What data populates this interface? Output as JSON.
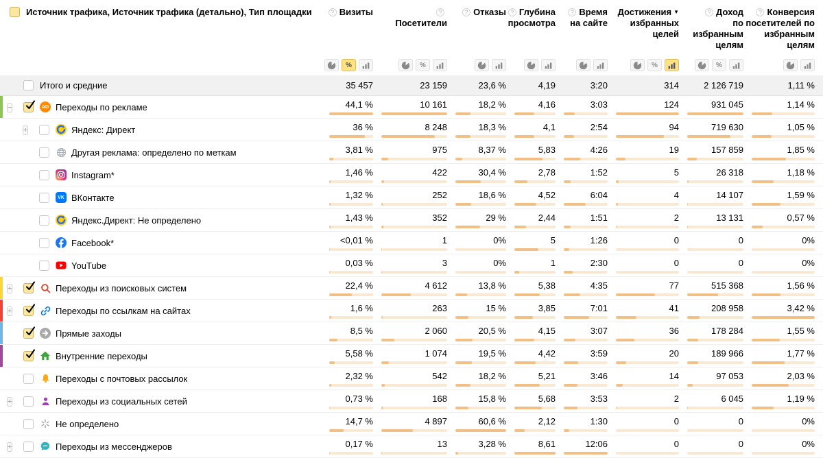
{
  "header": {
    "dimension_title": "Источник трафика, Источник трафика (детально), Тип площадки",
    "select_all_checked": true,
    "columns": [
      {
        "key": "visits",
        "label": "Визиты",
        "help": true,
        "sort": null,
        "toggles": [
          "pie",
          "percent",
          "bars"
        ],
        "active": "percent"
      },
      {
        "key": "visitors",
        "label": "Посетители",
        "help": true,
        "sort": null,
        "toggles": [
          "pie",
          "percent",
          "bars"
        ],
        "active": null
      },
      {
        "key": "bounce",
        "label": "Отказы",
        "help": true,
        "sort": null,
        "toggles": [
          "pie",
          "bars"
        ],
        "active": null
      },
      {
        "key": "depth",
        "label": "Глубина просмотра",
        "help": true,
        "sort": null,
        "toggles": [
          "pie",
          "bars"
        ],
        "active": null
      },
      {
        "key": "time",
        "label": "Время на сайте",
        "help": true,
        "sort": null,
        "toggles": [
          "pie",
          "bars"
        ],
        "active": null
      },
      {
        "key": "goals",
        "label": "Достижения избранных целей",
        "help": false,
        "sort": "desc",
        "toggles": [
          "pie",
          "percent",
          "bars"
        ],
        "active": "bars"
      },
      {
        "key": "revenue",
        "label": "Доход по избранным целям",
        "help": true,
        "sort": null,
        "toggles": [
          "pie",
          "percent",
          "bars"
        ],
        "active": null
      },
      {
        "key": "conversion",
        "label": "Конверсия посетителей по избранным целям",
        "help": true,
        "sort": null,
        "toggles": [
          "pie",
          "bars"
        ],
        "active": null
      }
    ]
  },
  "colors": {
    "bar_track": "#f9e9d2",
    "bar_fill": "#f2bf85",
    "toggle_active_bg": "#ffe285",
    "checkbox_checked_bg": "#fbe7a2"
  },
  "totals": {
    "label": "Итого и средние",
    "checked": false,
    "values": [
      "35 457",
      "23 159",
      "23,6 %",
      "4,19",
      "3:20",
      "314",
      "2 126 719",
      "1,11 %"
    ]
  },
  "rows": [
    {
      "level": 0,
      "expander": "minus",
      "checked": true,
      "icon": "ad-icon",
      "accent": "#8dc653",
      "label": "Переходы по рекламе",
      "values": [
        "44,1 %",
        "10 161",
        "18,2 %",
        "4,16",
        "3:03",
        "124",
        "931 045",
        "1,14 %"
      ],
      "frac": [
        1,
        1,
        0.3,
        0.48,
        0.25,
        1,
        1,
        0.33
      ]
    },
    {
      "level": 1,
      "expander": "plus",
      "checked": false,
      "icon": "yandex-direct-icon",
      "accent": null,
      "label": "Яндекс: Директ",
      "values": [
        "36 %",
        "8 248",
        "18,3 %",
        "4,1",
        "2:54",
        "94",
        "719 630",
        "1,05 %"
      ],
      "frac": [
        0.82,
        0.81,
        0.3,
        0.48,
        0.24,
        0.76,
        0.77,
        0.31
      ]
    },
    {
      "level": 1,
      "expander": null,
      "checked": false,
      "icon": "globe-icon",
      "accent": null,
      "label": "Другая реклама: определено по меткам",
      "values": [
        "3,81 %",
        "975",
        "8,37 %",
        "5,83",
        "4:26",
        "19",
        "157 859",
        "1,85 %"
      ],
      "frac": [
        0.09,
        0.1,
        0.14,
        0.68,
        0.37,
        0.15,
        0.17,
        0.54
      ]
    },
    {
      "level": 1,
      "expander": null,
      "checked": false,
      "icon": "instagram-icon",
      "accent": null,
      "label": "Instagram*",
      "values": [
        "1,46 %",
        "422",
        "30,4 %",
        "2,78",
        "1:52",
        "5",
        "26 318",
        "1,18 %"
      ],
      "frac": [
        0.03,
        0.04,
        0.5,
        0.32,
        0.15,
        0.04,
        0.03,
        0.35
      ]
    },
    {
      "level": 1,
      "expander": null,
      "checked": false,
      "icon": "vk-icon",
      "accent": null,
      "label": "ВКонтакте",
      "values": [
        "1,32 %",
        "252",
        "18,6 %",
        "4,52",
        "6:04",
        "4",
        "14 107",
        "1,59 %"
      ],
      "frac": [
        0.03,
        0.025,
        0.31,
        0.53,
        0.5,
        0.03,
        0.015,
        0.46
      ]
    },
    {
      "level": 1,
      "expander": null,
      "checked": false,
      "icon": "yandex-direct-icon",
      "accent": null,
      "label": "Яндекс.Директ: Не определено",
      "values": [
        "1,43 %",
        "352",
        "29 %",
        "2,44",
        "1:51",
        "2",
        "13 131",
        "0,57 %"
      ],
      "frac": [
        0.03,
        0.035,
        0.48,
        0.28,
        0.15,
        0.016,
        0.014,
        0.17
      ]
    },
    {
      "level": 1,
      "expander": null,
      "checked": false,
      "icon": "facebook-icon",
      "accent": null,
      "label": "Facebook*",
      "values": [
        "<0,01 %",
        "1",
        "0%",
        "5",
        "1:26",
        "0",
        "0",
        "0%"
      ],
      "frac": [
        0.002,
        0.001,
        0,
        0.58,
        0.12,
        0,
        0,
        0
      ]
    },
    {
      "level": 1,
      "expander": null,
      "checked": false,
      "icon": "youtube-icon",
      "accent": null,
      "label": "YouTube",
      "values": [
        "0,03 %",
        "3",
        "0%",
        "1",
        "2:30",
        "0",
        "0",
        "0%"
      ],
      "frac": [
        0.002,
        0.002,
        0,
        0.12,
        0.21,
        0,
        0,
        0
      ]
    },
    {
      "level": 0,
      "expander": "plus",
      "checked": true,
      "icon": "search-icon",
      "accent": "#fdd535",
      "label": "Переходы из поисковых систем",
      "values": [
        "22,4 %",
        "4 612",
        "13,8 %",
        "5,38",
        "4:35",
        "77",
        "515 368",
        "1,56 %"
      ],
      "frac": [
        0.51,
        0.45,
        0.23,
        0.62,
        0.38,
        0.62,
        0.55,
        0.46
      ]
    },
    {
      "level": 0,
      "expander": "plus",
      "checked": true,
      "icon": "link-icon",
      "accent": "#f44336",
      "label": "Переходы по ссылкам на сайтах",
      "values": [
        "1,6 %",
        "263",
        "15 %",
        "3,85",
        "7:01",
        "41",
        "208 958",
        "3,42 %"
      ],
      "frac": [
        0.04,
        0.026,
        0.25,
        0.45,
        0.58,
        0.33,
        0.22,
        1
      ]
    },
    {
      "level": 0,
      "expander": null,
      "checked": true,
      "icon": "arrow-right-circle-icon",
      "accent": "#6fb6e8",
      "label": "Прямые заходы",
      "values": [
        "8,5 %",
        "2 060",
        "20,5 %",
        "4,15",
        "3:07",
        "36",
        "178 284",
        "1,55 %"
      ],
      "frac": [
        0.19,
        0.2,
        0.34,
        0.48,
        0.26,
        0.29,
        0.19,
        0.45
      ]
    },
    {
      "level": 0,
      "expander": null,
      "checked": true,
      "icon": "home-icon",
      "accent": "#a0489e",
      "label": "Внутренние переходы",
      "values": [
        "5,58 %",
        "1 074",
        "19,5 %",
        "4,42",
        "3:59",
        "20",
        "189 966",
        "1,77 %"
      ],
      "frac": [
        0.13,
        0.11,
        0.32,
        0.51,
        0.33,
        0.16,
        0.2,
        0.52
      ]
    },
    {
      "level": 0,
      "expander": null,
      "checked": false,
      "icon": "bell-icon",
      "accent": null,
      "label": "Переходы с почтовых рассылок",
      "values": [
        "2,32 %",
        "542",
        "18,2 %",
        "5,21",
        "3:46",
        "14",
        "97 053",
        "2,03 %"
      ],
      "frac": [
        0.05,
        0.05,
        0.3,
        0.61,
        0.31,
        0.11,
        0.1,
        0.59
      ]
    },
    {
      "level": 0,
      "expander": "plus",
      "checked": false,
      "icon": "person-icon",
      "accent": null,
      "label": "Переходы из социальных сетей",
      "values": [
        "0,73 %",
        "168",
        "15,8 %",
        "5,68",
        "3:53",
        "2",
        "6 045",
        "1,19 %"
      ],
      "frac": [
        0.017,
        0.017,
        0.26,
        0.66,
        0.32,
        0.016,
        0.006,
        0.35
      ]
    },
    {
      "level": 0,
      "expander": null,
      "checked": false,
      "icon": "asterisk-icon",
      "accent": null,
      "label": "Не определено",
      "values": [
        "14,7 %",
        "4 897",
        "60,6 %",
        "2,12",
        "1:30",
        "0",
        "0",
        "0%"
      ],
      "frac": [
        0.33,
        0.48,
        1,
        0.25,
        0.12,
        0,
        0,
        0
      ]
    },
    {
      "level": 0,
      "expander": "plus",
      "checked": false,
      "icon": "chat-icon",
      "accent": null,
      "label": "Переходы из мессенджеров",
      "values": [
        "0,17 %",
        "13",
        "3,28 %",
        "8,61",
        "12:06",
        "0",
        "0",
        "0%"
      ],
      "frac": [
        0.004,
        0.002,
        0.05,
        1,
        1,
        0,
        0,
        0
      ]
    }
  ]
}
